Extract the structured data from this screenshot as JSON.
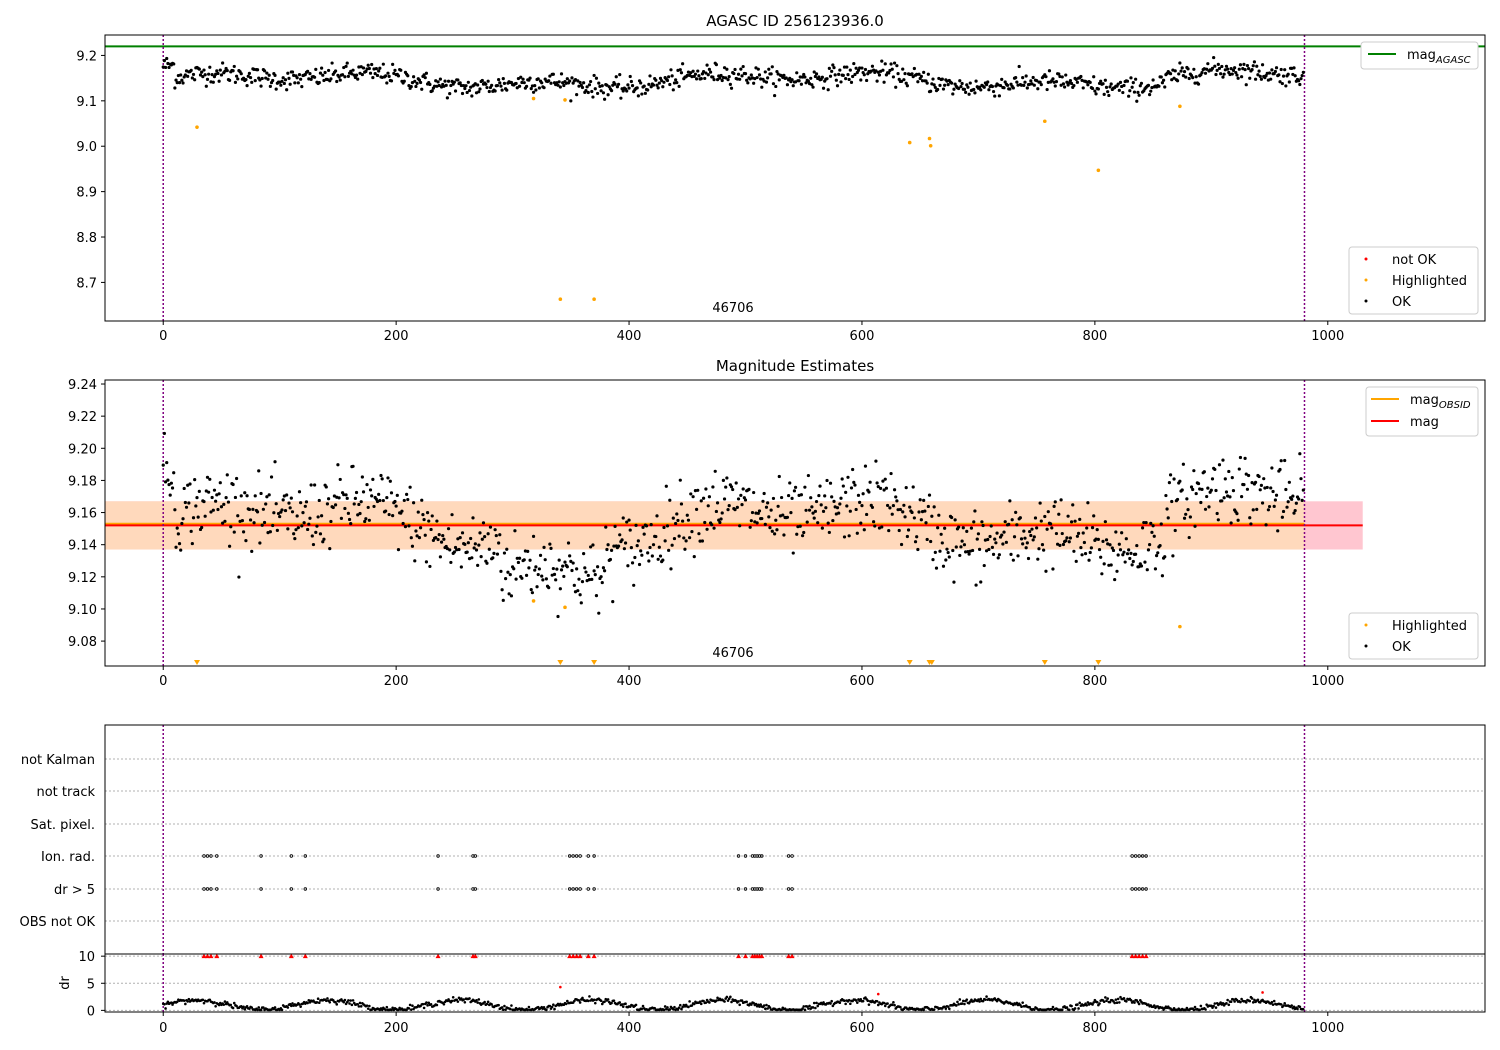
{
  "chart_data": [
    {
      "type": "scatter",
      "title": "AGASC ID 256123936.0",
      "annotation": "46706",
      "xlim": [
        -50,
        1135
      ],
      "ylim": [
        8.615,
        9.245
      ],
      "xticks": [
        "0",
        "200",
        "400",
        "600",
        "800",
        "1000"
      ],
      "yticks": [
        "9.2",
        "9.1",
        "9.0",
        "8.9",
        "8.8",
        "8.7"
      ],
      "vlines_x": [
        0,
        980
      ],
      "hline": {
        "label_base": "mag",
        "label_sub": "AGASC",
        "y": 9.22,
        "color": "#008000"
      },
      "legend_points": [
        "not OK",
        "Highlighted",
        "OK"
      ],
      "series": {
        "ok": {
          "name": "OK",
          "color": "#000000",
          "x_range": [
            0,
            980
          ],
          "count": 980
        },
        "highlighted": {
          "name": "Highlighted",
          "color": "#ffa500",
          "x": [
            29,
            318,
            341,
            345,
            370,
            641,
            658,
            659,
            757,
            803,
            873
          ],
          "y": [
            9.042,
            9.105,
            8.663,
            9.102,
            8.663,
            9.008,
            9.017,
            9.001,
            9.055,
            8.947,
            9.088
          ]
        },
        "not_ok": {
          "name": "not OK",
          "color": "#ff0000",
          "x": [],
          "y": []
        }
      }
    },
    {
      "type": "scatter",
      "title": "Magnitude Estimates",
      "annotation": "46706",
      "xlim": [
        -50,
        1135
      ],
      "ylim": [
        9.0645,
        9.2425
      ],
      "xticks": [
        "0",
        "200",
        "400",
        "600",
        "800",
        "1000"
      ],
      "yticks": [
        "9.24",
        "9.22",
        "9.20",
        "9.18",
        "9.16",
        "9.14",
        "9.12",
        "9.10",
        "9.08"
      ],
      "vlines_x": [
        0,
        980
      ],
      "bands": [
        {
          "y0": 9.137,
          "y1": 9.167,
          "x0": -50,
          "x1": 1030,
          "color": "#ffc0cb"
        },
        {
          "y0": 9.137,
          "y1": 9.167,
          "x0": -50,
          "x1": 980,
          "color": "#ffdab9"
        }
      ],
      "lines": [
        {
          "label_base": "mag",
          "label_sub": "OBSID",
          "y": 9.153,
          "x0": -50,
          "x1": 980,
          "color": "#ffa500"
        },
        {
          "label_base": "mag",
          "label_sub": "",
          "y": 9.152,
          "x0": -50,
          "x1": 1030,
          "color": "#ff0000"
        }
      ],
      "legend_points": [
        "Highlighted",
        "OK"
      ],
      "series": {
        "ok": {
          "name": "OK",
          "color": "#000000",
          "x_range": [
            0,
            980
          ],
          "count": 980
        },
        "highlighted": {
          "name": "Highlighted",
          "color": "#ffa500",
          "x": [
            318,
            345,
            873
          ],
          "y": [
            9.105,
            9.101,
            9.089
          ]
        },
        "below_range_markers": {
          "color": "#ffa500",
          "x": [
            29,
            341,
            370,
            641,
            658,
            660,
            757,
            803
          ]
        }
      }
    },
    {
      "type": "scatter",
      "title": "",
      "xlim": [
        -50,
        1135
      ],
      "categories": [
        "not Kalman",
        "not track",
        "Sat. pixel.",
        "Ion. rad.",
        "dr > 5",
        "OBS not OK"
      ],
      "vlines_x": [
        0,
        980
      ],
      "flag_x": [
        35,
        38,
        41,
        46,
        84,
        110,
        122,
        236,
        266,
        268,
        349,
        352,
        355,
        358,
        365,
        370,
        494,
        500,
        506,
        508,
        510,
        512,
        514,
        537,
        540,
        832,
        835,
        838,
        841,
        844
      ],
      "flagged_rows": [
        "Ion. rad.",
        "dr > 5"
      ]
    },
    {
      "type": "scatter",
      "title": "",
      "xlim": [
        -50,
        1135
      ],
      "ylim": [
        -0.3,
        10.4
      ],
      "ylabel": "dr",
      "xticks": [
        "0",
        "200",
        "400",
        "600",
        "800",
        "1000"
      ],
      "yticks": [
        "10",
        "5",
        "0"
      ],
      "vlines_x": [
        0,
        980
      ],
      "series": {
        "ok": {
          "name": "dr",
          "color": "#000000",
          "x_range": [
            0,
            980
          ],
          "count": 980
        },
        "outliers": {
          "color": "#ff0000",
          "x": [
            341,
            614,
            944
          ],
          "y": [
            4.3,
            3.0,
            3.3
          ]
        },
        "clipped_at_10": {
          "color": "#ff0000",
          "x": [
            35,
            38,
            41,
            46,
            84,
            110,
            122,
            236,
            266,
            268,
            349,
            352,
            355,
            358,
            365,
            370,
            494,
            500,
            506,
            508,
            510,
            512,
            514,
            537,
            540,
            832,
            835,
            838,
            841,
            844
          ]
        }
      }
    }
  ]
}
